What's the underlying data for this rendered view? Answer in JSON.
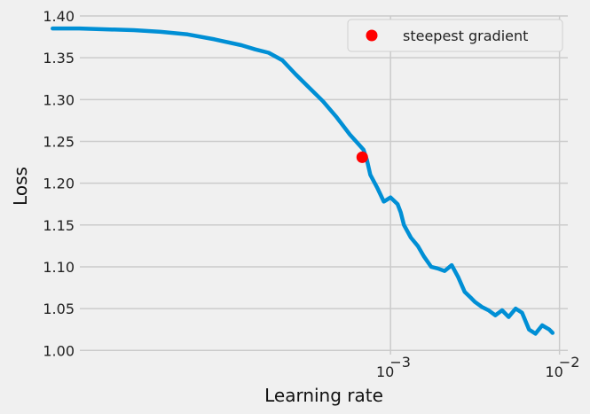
{
  "chart_data": {
    "type": "line",
    "xlabel": "Learning rate",
    "ylabel": "Loss",
    "x_scale": "log",
    "xlim": [
      1.45e-05,
      0.0112
    ],
    "ylim": [
      0.995,
      1.4
    ],
    "grid": true,
    "legend_position": "top-right",
    "colors": {
      "background": "#f0f0f0",
      "grid": "#cbcbcb",
      "line": "#008fd5",
      "marker": "#ff0000"
    },
    "x_ticks": [
      {
        "value": 0.001,
        "label": "10",
        "exponent": "−3"
      },
      {
        "value": 0.01,
        "label": "10",
        "exponent": "−2"
      }
    ],
    "y_ticks": [
      {
        "value": 1.0,
        "label": "1.00"
      },
      {
        "value": 1.05,
        "label": "1.05"
      },
      {
        "value": 1.1,
        "label": "1.10"
      },
      {
        "value": 1.15,
        "label": "1.15"
      },
      {
        "value": 1.2,
        "label": "1.20"
      },
      {
        "value": 1.25,
        "label": "1.25"
      },
      {
        "value": 1.3,
        "label": "1.30"
      },
      {
        "value": 1.35,
        "label": "1.35"
      },
      {
        "value": 1.4,
        "label": "1.40"
      }
    ],
    "series": [
      {
        "x": [
          1e-05,
          1.44e-05,
          2.09e-05,
          3.02e-05,
          4.36e-05,
          6.3e-05,
          9.1e-05,
          0.000131,
          0.000158,
          0.00019,
          0.000229,
          0.000275,
          0.000331,
          0.000398,
          0.000479,
          0.000575,
          0.000631,
          0.000692,
          0.000724,
          0.000759,
          0.000832,
          0.000912,
          0.001,
          0.0011,
          0.00115,
          0.0012,
          0.00132,
          0.00145,
          0.00158,
          0.00174,
          0.0019,
          0.00209,
          0.0023,
          0.00251,
          0.00275,
          0.00302,
          0.00316,
          0.00347,
          0.0038,
          0.00417,
          0.00457,
          0.005,
          0.0055,
          0.006,
          0.0066,
          0.0072,
          0.0079,
          0.0087,
          0.0091
        ],
        "values": [
          1.385,
          1.385,
          1.384,
          1.383,
          1.381,
          1.378,
          1.372,
          1.365,
          1.36,
          1.356,
          1.347,
          1.33,
          1.314,
          1.298,
          1.279,
          1.258,
          1.249,
          1.24,
          1.228,
          1.21,
          1.195,
          1.178,
          1.183,
          1.175,
          1.165,
          1.15,
          1.135,
          1.125,
          1.112,
          1.1,
          1.098,
          1.095,
          1.102,
          1.088,
          1.07,
          1.062,
          1.058,
          1.052,
          1.048,
          1.042,
          1.048,
          1.04,
          1.05,
          1.045,
          1.025,
          1.02,
          1.03,
          1.025,
          1.021
        ]
      }
    ],
    "points": [
      {
        "name": "steepest gradient",
        "x": 0.00068,
        "y": 1.231
      }
    ]
  }
}
